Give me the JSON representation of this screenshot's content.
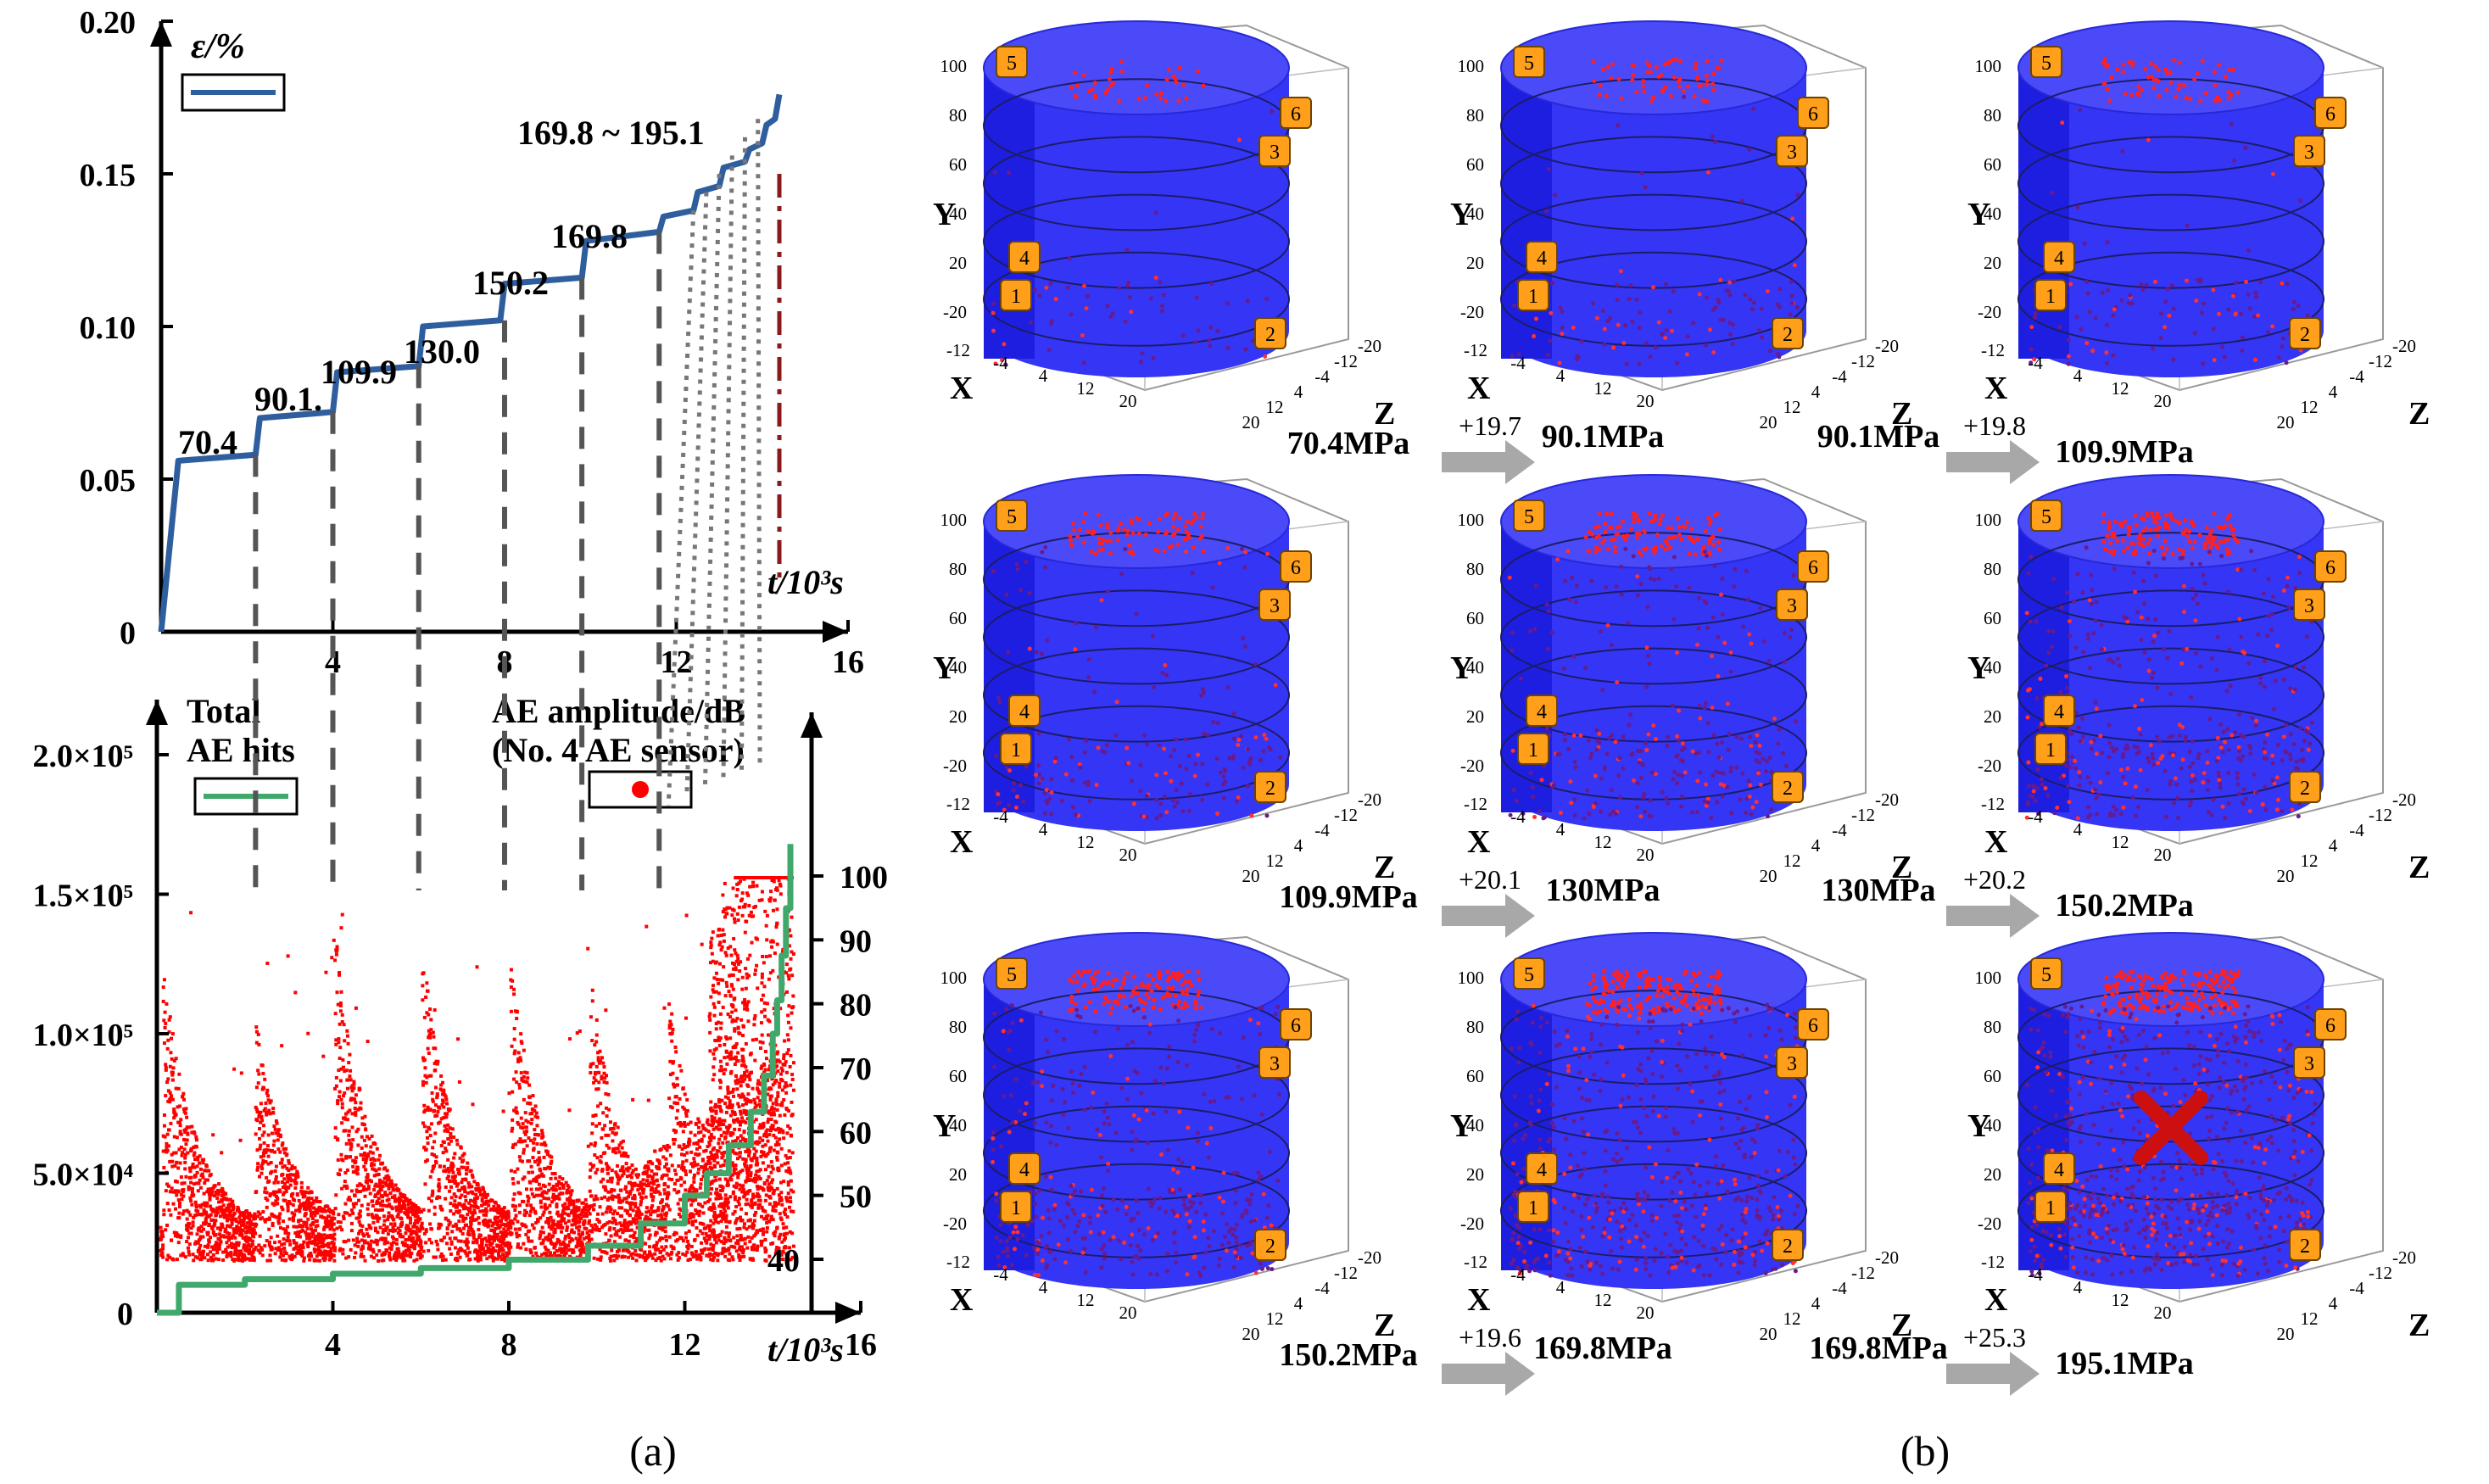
{
  "panel_a": {
    "label": "(a)",
    "strain_chart": {
      "ylabel": "ε/%",
      "yticks": [
        "0",
        "0.05",
        "0.10",
        "0.15",
        "0.20"
      ],
      "xticks": [
        "4",
        "8",
        "12",
        "16"
      ],
      "xlabel": "t/10³s",
      "stress_labels": [
        "70.4",
        "90.1.",
        "109.9",
        "130.0",
        "150.2",
        "169.8",
        "169.8 ~ 195.1"
      ]
    },
    "ae_chart": {
      "left_label_1": "Total",
      "left_label_2": "AE hits",
      "right_label_1": "AE amplitude/dB",
      "right_label_2": "(No. 4 AE sensor)",
      "left_yticks": [
        "0",
        "5.0×10⁴",
        "1.0×10⁵",
        "1.5×10⁵",
        "2.0×10⁵"
      ],
      "right_yticks": [
        "40",
        "50",
        "60",
        "70",
        "80",
        "90",
        "100"
      ],
      "xticks": [
        "4",
        "8",
        "12",
        "16"
      ],
      "xlabel": "t/10³s"
    }
  },
  "panel_b": {
    "label": "(b)",
    "axis_labels": {
      "x": "X",
      "y": "Y",
      "z": "Z"
    },
    "yticks": [
      "100",
      "80",
      "60",
      "40",
      "20",
      "-20"
    ],
    "xticks": [
      "-12",
      "-4",
      "4",
      "12",
      "20"
    ],
    "zticks": [
      "-20",
      "-12",
      "-4",
      "4",
      "12",
      "20"
    ],
    "sensors": [
      "1",
      "2",
      "3",
      "4",
      "5",
      "6"
    ],
    "cells": [
      {
        "caption": "70.4MPa"
      },
      {
        "caption": "90.1MPa"
      },
      {
        "caption": "90.1MPa"
      },
      {
        "caption": "109.9MPa"
      },
      {
        "caption": "109.9MPa"
      },
      {
        "caption": "130MPa"
      },
      {
        "caption": "130MPa"
      },
      {
        "caption": "150.2MPa"
      },
      {
        "caption": "150.2MPa"
      },
      {
        "caption": "169.8MPa"
      },
      {
        "caption": "169.8MPa"
      },
      {
        "caption": "195.1MPa"
      }
    ],
    "increments": [
      "+19.7",
      "+19.8",
      "+20.1",
      "+20.2",
      "+19.6",
      "+25.3"
    ]
  },
  "chart_data": [
    {
      "type": "line",
      "title": "",
      "xlabel": "t/10³s",
      "ylabel": "ε/%",
      "xlim": [
        0,
        16
      ],
      "ylim": [
        0,
        0.2
      ],
      "series": [
        {
          "name": "ε/%",
          "x": [
            0,
            0.4,
            2.2,
            2.3,
            4.0,
            4.1,
            6.0,
            6.1,
            7.9,
            8.0,
            9.8,
            9.9,
            11.6,
            11.7,
            12.4,
            12.5,
            13.0,
            13.1,
            13.6,
            13.7,
            14.0,
            14.1,
            14.3,
            14.4
          ],
          "values": [
            0,
            0.056,
            0.058,
            0.07,
            0.072,
            0.085,
            0.087,
            0.1,
            0.102,
            0.114,
            0.116,
            0.128,
            0.131,
            0.136,
            0.138,
            0.144,
            0.146,
            0.152,
            0.154,
            0.158,
            0.16,
            0.166,
            0.168,
            0.176
          ]
        }
      ],
      "annotations": [
        "70.4",
        "90.1.",
        "109.9",
        "130.0",
        "150.2",
        "169.8",
        "169.8 ~ 195.1"
      ]
    },
    {
      "type": "line",
      "title": "",
      "xlabel": "t/10³s",
      "ylabel": "Total AE hits",
      "xlim": [
        0,
        16
      ],
      "ylim": [
        0,
        200000
      ],
      "series": [
        {
          "name": "Total AE hits",
          "x": [
            0,
            0.5,
            2,
            4,
            6,
            8,
            9.8,
            11,
            12,
            12.5,
            13,
            13.5,
            13.8,
            14.0,
            14.1,
            14.2,
            14.3,
            14.4
          ],
          "values": [
            0,
            10000,
            12000,
            14000,
            16000,
            19000,
            24000,
            32000,
            42000,
            50000,
            60000,
            72000,
            85000,
            100000,
            112000,
            128000,
            145000,
            168000
          ]
        }
      ]
    },
    {
      "type": "scatter",
      "title": "",
      "xlabel": "t/10³s",
      "ylabel": "AE amplitude/dB (No. 4 AE sensor)",
      "xlim": [
        0,
        16
      ],
      "ylim": [
        40,
        100
      ]
    }
  ]
}
